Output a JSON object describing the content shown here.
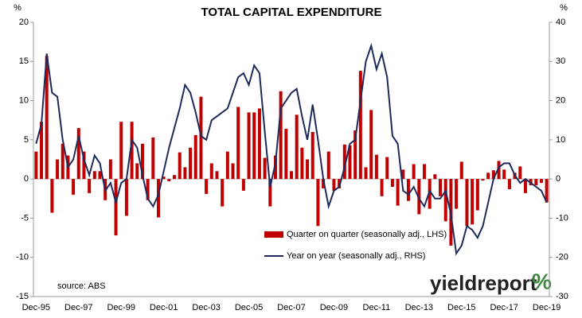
{
  "chart_data": {
    "type": "combo",
    "title": "TOTAL CAPITAL EXPENDITURE",
    "y_label": "%",
    "y2_label": "%",
    "source": "source: ABS",
    "logo": [
      "yieldreport",
      "%"
    ],
    "categories": [
      "Dec-95",
      null,
      null,
      null,
      null,
      null,
      null,
      null,
      "Dec-97",
      null,
      null,
      null,
      null,
      null,
      null,
      null,
      "Dec-99",
      null,
      null,
      null,
      null,
      null,
      null,
      null,
      "Dec-01",
      null,
      null,
      null,
      null,
      null,
      null,
      null,
      "Dec-03",
      null,
      null,
      null,
      null,
      null,
      null,
      null,
      "Dec-05",
      null,
      null,
      null,
      null,
      null,
      null,
      null,
      "Dec-07",
      null,
      null,
      null,
      null,
      null,
      null,
      null,
      "Dec-09",
      null,
      null,
      null,
      null,
      null,
      null,
      null,
      "Dec-11",
      null,
      null,
      null,
      null,
      null,
      null,
      null,
      "Dec-13",
      null,
      null,
      null,
      null,
      null,
      null,
      null,
      "Dec-15",
      null,
      null,
      null,
      null,
      null,
      null,
      null,
      "Dec-17",
      null,
      null,
      null,
      null,
      null,
      null,
      null,
      "Dec-19"
    ],
    "ylim": [
      -15,
      20
    ],
    "yticks": [
      -15,
      -10,
      -5,
      0,
      5,
      10,
      15,
      20
    ],
    "y2lim": [
      -30,
      40
    ],
    "y2ticks": [
      -30,
      -20,
      -10,
      0,
      10,
      20,
      30,
      40
    ],
    "grid": false,
    "series": [
      {
        "name": "Quarter on quarter (seasonally adj., LHS)",
        "type": "bar",
        "axis": "y",
        "color": "#c00000",
        "values": [
          3.5,
          7.3,
          15.7,
          -4.3,
          2.5,
          4.5,
          3,
          -2,
          6.5,
          3.5,
          -1.8,
          1,
          1,
          -2.7,
          2.5,
          -7.2,
          7.3,
          -4.7,
          7.3,
          2,
          4.5,
          -2.7,
          5.3,
          -4.9,
          0.3,
          -0.3,
          0.5,
          3.4,
          1.5,
          4,
          5.6,
          10.5,
          -1.9,
          2,
          1,
          -3.5,
          3.5,
          2,
          9.2,
          -1.5,
          8.5,
          8.5,
          9,
          2.7,
          -3.5,
          3,
          11.2,
          6.4,
          1,
          8.2,
          4,
          2.5,
          6,
          -6,
          -1.2,
          3.5,
          -1.5,
          -1.2,
          4.4,
          4.3,
          6.2,
          13.8,
          1.5,
          8.8,
          3.1,
          -2.2,
          2.8,
          -1,
          -3.4,
          1.2,
          -2.8,
          1.9,
          -4.5,
          1.9,
          -3.8,
          0.6,
          -2.2,
          -5.4,
          -8.5,
          -3.8,
          2.2,
          -6,
          -5.8,
          -4,
          -0.2,
          0.8,
          1.1,
          2.3,
          1.2,
          -1.3,
          0.8,
          1.6,
          -1.8,
          -0.8,
          -0.8,
          -0.5,
          -3
        ]
      },
      {
        "name": "Year on year (seasonally adj., RHS)",
        "type": "line",
        "axis": "y2",
        "color": "#1f2a5c",
        "values": [
          9,
          14,
          32,
          22,
          21,
          10,
          3,
          5,
          11,
          5,
          1,
          6,
          4,
          -3,
          -1,
          -6,
          -1,
          0,
          10,
          8,
          1,
          -5,
          -7,
          -4,
          2,
          8,
          13,
          18,
          24,
          22,
          17,
          11,
          10,
          15,
          16,
          17,
          18,
          22,
          26,
          27,
          24,
          29,
          27,
          12,
          -2,
          4,
          18,
          20,
          22,
          23,
          16,
          10,
          19,
          10,
          0,
          -7,
          -3,
          -2,
          3,
          9,
          10,
          20,
          30,
          34,
          28,
          32,
          26,
          11,
          9,
          -3,
          -4,
          -2,
          -5,
          -7,
          -3,
          -5,
          -5,
          -3,
          -9,
          -19,
          -17,
          -12,
          -13,
          -15,
          -12,
          -6,
          0,
          3,
          4,
          4,
          1,
          -1,
          0,
          -1,
          -2,
          -3,
          -6
        ]
      }
    ]
  }
}
